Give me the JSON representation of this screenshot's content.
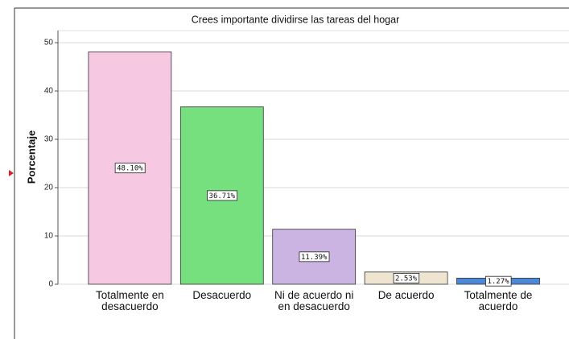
{
  "chart_data": {
    "type": "bar",
    "title": "Crees importante dividirse las tareas del hogar",
    "y_label": "Porcentaje",
    "categories": [
      "Totalmente en desacuerdo",
      "Desacuerdo",
      "Ni de acuerdo ni en desacuerdo",
      "De acuerdo",
      "Totalmente de acuerdo"
    ],
    "values": [
      48.1,
      36.71,
      11.39,
      2.53,
      1.27
    ],
    "value_labels": [
      "48.10%",
      "36.71%",
      "11.39%",
      "2.53%",
      "1.27%"
    ],
    "colors": [
      "#f6c8e2",
      "#77e07e",
      "#cbb3e2",
      "#eee4cf",
      "#4d88d8"
    ],
    "ylim": [
      0,
      52.5
    ],
    "yticks": [
      0,
      10,
      20,
      30,
      40,
      50
    ],
    "grid": true
  }
}
